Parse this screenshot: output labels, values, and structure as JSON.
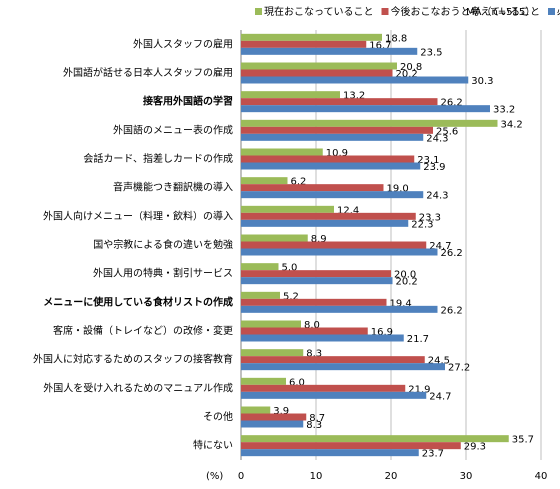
{
  "chart_data": {
    "type": "bar",
    "orientation": "horizontal",
    "note": "MA（n=515）",
    "x_unit_label": "(%)",
    "categories": [
      "外国人スタッフの雇用",
      "外国語が話せる日本人スタッフの雇用",
      "接客用外国語の学習",
      "外国語のメニュー表の作成",
      "会話カード、指差しカードの作成",
      "音声機能つき翻訳機の導入",
      "外国人向けメニュー（料理・飲料）の導入",
      "国や宗教による食の違いを勉強",
      "外国人用の特典・割引サービス",
      "メニューに使用している食材リストの作成",
      "客席・設備（トレイなど）の改修・変更",
      "外国人に対応するためのスタッフの接客教育",
      "外国人を受け入れるためのマニュアル作成",
      "その他",
      "特にない"
    ],
    "bold_categories": [
      2,
      9
    ],
    "series": [
      {
        "name": "現在おこなっていること",
        "color": "#9bbb59",
        "values": [
          18.8,
          20.8,
          13.2,
          34.2,
          10.9,
          6.2,
          12.4,
          8.9,
          5.0,
          5.2,
          8.0,
          8.3,
          6.0,
          3.9,
          35.7
        ],
        "value_labels": [
          "18.8",
          "20.8",
          "13.2",
          "34.2",
          "10.9",
          "6.2",
          "12.4",
          "8.9",
          "5.0",
          "5.2",
          "8.0",
          "8.3",
          "6.0",
          "3.9",
          "35.7"
        ]
      },
      {
        "name": "今後おこなおうと考えていること",
        "color": "#c0504d",
        "values": [
          16.7,
          20.2,
          26.2,
          25.6,
          23.1,
          19.0,
          23.3,
          24.7,
          20.0,
          19.4,
          16.9,
          24.5,
          21.9,
          8.7,
          29.3
        ],
        "value_labels": [
          "16.7",
          "20.2",
          "26.2",
          "25.6",
          "23.1",
          "19.0",
          "23.3",
          "24.7",
          "20.0",
          "19.4",
          "16.9",
          "24.5",
          "21.9",
          "8.7",
          "29.3"
        ]
      },
      {
        "name": "必要だと思うこと",
        "color": "#4f81bd",
        "values": [
          23.5,
          30.3,
          33.2,
          24.3,
          23.9,
          24.3,
          22.3,
          26.2,
          20.2,
          26.2,
          21.7,
          27.2,
          24.7,
          8.3,
          23.7
        ],
        "value_labels": [
          "23.5",
          "30.3",
          "33.2",
          "24.3",
          "23.9",
          "24.3",
          "22.3",
          "26.2",
          "20.2",
          "26.2",
          "21.7",
          "27.2",
          "24.7",
          "8.3",
          "23.7"
        ]
      }
    ],
    "xlim": [
      0,
      40
    ],
    "xticks": [
      0,
      10,
      20,
      30,
      40
    ],
    "grid": true
  }
}
